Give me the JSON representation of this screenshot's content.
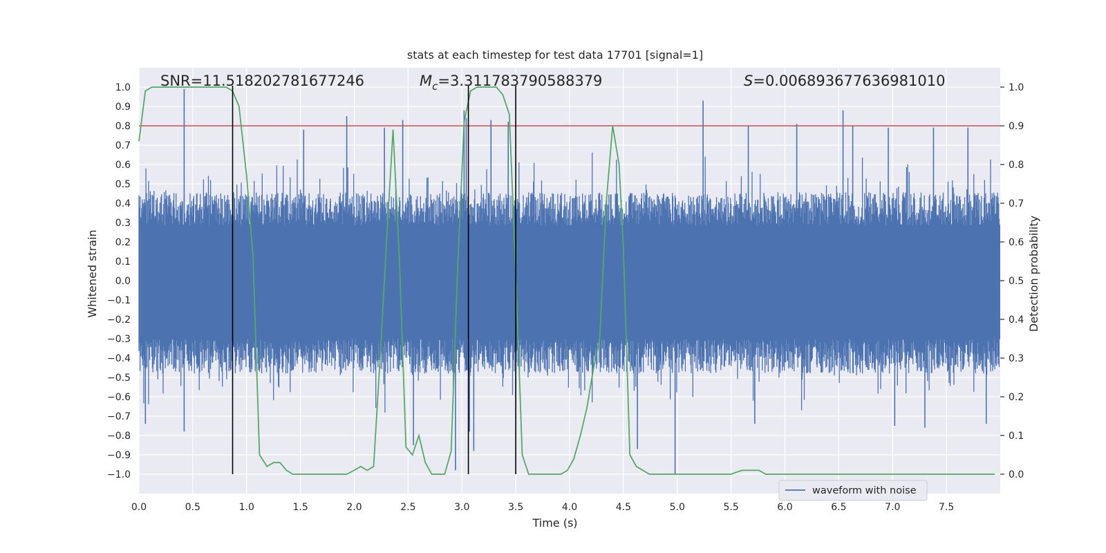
{
  "chart_data": {
    "type": "line",
    "title": "stats at each timestep for test data 17701 [signal=1]",
    "xlabel": "Time (s)",
    "ylabel_left": "Whitened strain",
    "ylabel_right": "Detection probability",
    "xlim": [
      0,
      8
    ],
    "ylim_left": [
      -1.1,
      1.1
    ],
    "ylim_right": [
      -0.05,
      1.05
    ],
    "x_ticks": [
      0.0,
      0.5,
      1.0,
      1.5,
      2.0,
      2.5,
      3.0,
      3.5,
      4.0,
      4.5,
      5.0,
      5.5,
      6.0,
      6.5,
      7.0,
      7.5
    ],
    "x_tick_labels": [
      "0.0",
      "0.5",
      "1.0",
      "1.5",
      "2.0",
      "2.5",
      "3.0",
      "3.5",
      "4.0",
      "4.5",
      "5.0",
      "5.5",
      "6.0",
      "6.5",
      "7.0",
      "7.5"
    ],
    "y_left_ticks": [
      1.0,
      0.9,
      0.8,
      0.7,
      0.6,
      0.5,
      0.4,
      0.3,
      0.2,
      0.1,
      0.0,
      -0.1,
      -0.2,
      -0.3,
      -0.4,
      -0.5,
      -0.6,
      -0.7,
      -0.8,
      -0.9,
      -1.0
    ],
    "y_left_tick_labels": [
      "1.0",
      "0.9",
      "0.8",
      "0.7",
      "0.6",
      "0.5",
      "0.4",
      "0.3",
      "0.2",
      "0.1",
      "0.0",
      "−0.1",
      "−0.2",
      "−0.3",
      "−0.4",
      "−0.5",
      "−0.6",
      "−0.7",
      "−0.8",
      "−0.9",
      "−1.0"
    ],
    "y_right_ticks": [
      1.0,
      0.9,
      0.8,
      0.7,
      0.6,
      0.5,
      0.4,
      0.3,
      0.2,
      0.1,
      0.0
    ],
    "y_right_tick_labels": [
      "1.0",
      "0.9",
      "0.8",
      "0.7",
      "0.6",
      "0.5",
      "0.4",
      "0.3",
      "0.2",
      "0.1",
      "0.0"
    ],
    "annotations": {
      "snr": "SNR=11.518202781677246",
      "mc_symbol": "M",
      "mc_subscript": "c",
      "mc_value": "=3.311783790588379",
      "s_symbol": "S",
      "s_value": "=0.006893677636981010"
    },
    "series": [
      {
        "name": "waveform with noise",
        "axis": "left",
        "color": "#4c72b0",
        "sample_rate": 200,
        "envelope_upper": 0.38,
        "envelope_lower": -0.4,
        "spikes": [
          {
            "t": 0.42,
            "v": 0.99
          },
          {
            "t": 0.42,
            "v": -0.78
          },
          {
            "t": 0.06,
            "v": -0.74
          },
          {
            "t": 1.53,
            "v": 0.78
          },
          {
            "t": 1.93,
            "v": 0.85
          },
          {
            "t": 2.28,
            "v": 0.79
          },
          {
            "t": 2.45,
            "v": 0.83
          },
          {
            "t": 2.55,
            "v": -0.85
          },
          {
            "t": 3.02,
            "v": 0.88
          },
          {
            "t": 2.94,
            "v": -0.98
          },
          {
            "t": 3.04,
            "v": 0.84
          },
          {
            "t": 3.07,
            "v": -0.78
          },
          {
            "t": 3.11,
            "v": -0.88
          },
          {
            "t": 3.27,
            "v": 0.83
          },
          {
            "t": 3.43,
            "v": 0.82
          },
          {
            "t": 4.63,
            "v": -0.87
          },
          {
            "t": 4.98,
            "v": -1.0
          },
          {
            "t": 5.24,
            "v": 0.93
          },
          {
            "t": 5.66,
            "v": 0.8
          },
          {
            "t": 6.11,
            "v": 0.81
          },
          {
            "t": 6.54,
            "v": 0.88
          },
          {
            "t": 6.63,
            "v": 0.8
          },
          {
            "t": 6.96,
            "v": 0.79
          },
          {
            "t": 7.38,
            "v": 0.79
          },
          {
            "t": 7.7,
            "v": 0.79
          },
          {
            "t": 7.02,
            "v": -0.75
          },
          {
            "t": 7.3,
            "v": -0.76
          },
          {
            "t": 7.87,
            "v": -0.74
          },
          {
            "t": 5.72,
            "v": -0.74
          }
        ]
      },
      {
        "name": "Detection probability",
        "axis": "right",
        "color": "#55a868",
        "x": [
          0.0,
          0.06,
          0.12,
          0.18,
          0.25,
          0.31,
          0.37,
          0.43,
          0.5,
          0.56,
          0.62,
          0.68,
          0.75,
          0.81,
          0.87,
          0.93,
          1.0,
          1.06,
          1.12,
          1.19,
          1.25,
          1.31,
          1.37,
          1.43,
          1.5,
          1.56,
          1.62,
          1.68,
          1.75,
          1.81,
          1.87,
          1.93,
          2.0,
          2.06,
          2.12,
          2.18,
          2.24,
          2.3,
          2.36,
          2.42,
          2.48,
          2.54,
          2.6,
          2.66,
          2.72,
          2.78,
          2.84,
          2.9,
          2.96,
          3.02,
          3.08,
          3.14,
          3.2,
          3.26,
          3.32,
          3.38,
          3.44,
          3.5,
          3.56,
          3.62,
          3.68,
          3.74,
          3.8,
          3.86,
          3.92,
          3.98,
          4.04,
          4.1,
          4.16,
          4.22,
          4.28,
          4.34,
          4.4,
          4.46,
          4.5,
          4.56,
          4.62,
          4.68,
          4.74,
          4.8,
          4.86,
          4.92,
          5.0,
          5.1,
          5.2,
          5.3,
          5.4,
          5.5,
          5.6,
          5.64,
          5.7,
          5.76,
          5.82,
          5.9,
          6.0,
          6.1,
          6.2,
          6.3,
          6.4,
          6.5,
          6.6,
          6.7,
          6.8,
          6.9,
          7.0,
          7.1,
          7.2,
          7.3,
          7.4,
          7.5,
          7.6,
          7.7,
          7.8,
          7.95
        ],
        "values": [
          0.86,
          0.99,
          1.0,
          1.0,
          1.0,
          1.0,
          1.0,
          1.0,
          1.0,
          1.0,
          1.0,
          1.0,
          1.0,
          1.0,
          0.99,
          0.95,
          0.77,
          0.56,
          0.05,
          0.02,
          0.03,
          0.03,
          0.01,
          0.0,
          0.0,
          0.0,
          0.0,
          0.0,
          0.0,
          0.0,
          0.0,
          0.0,
          0.01,
          0.02,
          0.01,
          0.02,
          0.3,
          0.6,
          0.89,
          0.55,
          0.07,
          0.05,
          0.1,
          0.03,
          0.0,
          0.0,
          0.0,
          0.06,
          0.53,
          0.91,
          0.99,
          1.0,
          1.0,
          1.0,
          1.0,
          0.98,
          0.93,
          0.52,
          0.05,
          0.0,
          0.0,
          0.0,
          0.0,
          0.0,
          0.0,
          0.01,
          0.04,
          0.1,
          0.17,
          0.27,
          0.35,
          0.7,
          0.9,
          0.8,
          0.58,
          0.05,
          0.02,
          0.01,
          0.0,
          0.0,
          0.0,
          0.0,
          0.0,
          0.0,
          0.0,
          0.0,
          0.0,
          0.0,
          0.01,
          0.01,
          0.01,
          0.01,
          0.0,
          0.0,
          0.0,
          0.0,
          0.0,
          0.0,
          0.0,
          0.0,
          0.0,
          0.0,
          0.0,
          0.0,
          0.0,
          0.0,
          0.0,
          0.0,
          0.0,
          0.0,
          0.0,
          0.0,
          0.0,
          0.0
        ]
      }
    ],
    "vertical_lines": [
      0.87,
      3.06,
      3.5
    ],
    "threshold_line": {
      "axis": "right",
      "value": 0.9,
      "color": "#c44e52"
    },
    "legend": {
      "entries": [
        "waveform with noise"
      ],
      "placement": "lower-right"
    },
    "grid": true
  }
}
